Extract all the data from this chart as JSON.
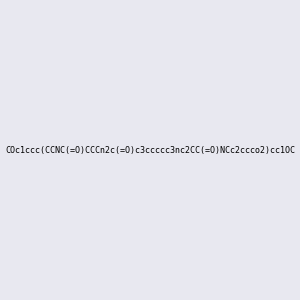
{
  "smiles": "COc1ccc(CCNC(=O)CCCn2c(=O)c3ccccc3nc2CC(=O)NCc2ccco2)cc1OC",
  "image_size": 300,
  "background_color": "#e8e8f0",
  "bond_color": "#000000",
  "atom_colors": {
    "N": "#0000FF",
    "O": "#FF0000",
    "C": "#000000"
  },
  "title": ""
}
